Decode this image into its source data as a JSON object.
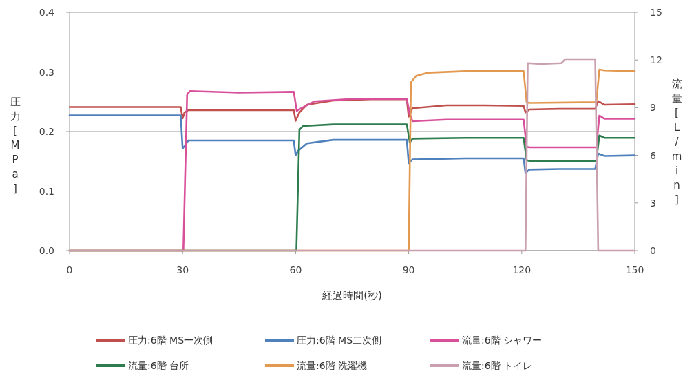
{
  "chart_data": {
    "type": "line",
    "xlabel": "経過時間(秒)",
    "ylabel": "圧力[MPa]",
    "y2label": "流量[L/min]",
    "xlim": [
      0,
      150
    ],
    "xticks": [
      0,
      30,
      60,
      90,
      120,
      150
    ],
    "ylim": [
      0,
      0.4
    ],
    "yticks": [
      {
        "value": 0,
        "label": "0.0"
      },
      {
        "value": 0.1,
        "label": "0.1"
      },
      {
        "value": 0.2,
        "label": "0.2"
      },
      {
        "value": 0.3,
        "label": "0.3"
      },
      {
        "value": 0.4,
        "label": "0.4"
      }
    ],
    "y2lim": [
      0,
      15
    ],
    "y2ticks": [
      0,
      3,
      6,
      9,
      12,
      15
    ],
    "grid": "y",
    "legend": "bottom",
    "marker": "none",
    "line_style": "solid",
    "series": [
      {
        "name": "圧力:6階 MS一次側",
        "color": "#c0504d",
        "x": [
          0,
          29.5,
          30,
          30.5,
          31.5,
          45,
          59.5,
          60,
          61,
          63,
          70,
          80,
          89.5,
          90,
          91,
          100,
          110,
          120.5,
          121,
          122,
          130,
          139.5,
          140.3,
          142,
          150
        ],
        "values": [
          0.241,
          0.241,
          0.222,
          0.232,
          0.236,
          0.236,
          0.236,
          0.218,
          0.232,
          0.245,
          0.252,
          0.254,
          0.254,
          0.225,
          0.239,
          0.244,
          0.244,
          0.243,
          0.232,
          0.237,
          0.238,
          0.238,
          0.251,
          0.245,
          0.246
        ]
      },
      {
        "name": "圧力:6階 MS二次側",
        "color": "#4f81bd",
        "x": [
          0,
          29.5,
          30,
          30.5,
          31.5,
          45,
          59.5,
          60,
          60.7,
          63,
          70,
          89.5,
          90,
          91,
          105,
          120.5,
          121,
          122,
          130,
          139.5,
          140.3,
          142,
          150
        ],
        "values": [
          0.227,
          0.227,
          0.172,
          0.175,
          0.185,
          0.185,
          0.185,
          0.16,
          0.168,
          0.18,
          0.186,
          0.186,
          0.147,
          0.153,
          0.155,
          0.155,
          0.13,
          0.136,
          0.137,
          0.137,
          0.163,
          0.159,
          0.16
        ]
      },
      {
        "name": "流量:6階 シャワー",
        "color": "#d9509a",
        "axis": "y2",
        "x": [
          0,
          30.2,
          31.2,
          32,
          45,
          59.5,
          60.3,
          61,
          65,
          75,
          89.5,
          90.3,
          91,
          100,
          120.5,
          121.3,
          122,
          139.8,
          140.6,
          142,
          150
        ],
        "values": [
          0,
          0,
          9.85,
          10.05,
          9.95,
          10.0,
          8.8,
          8.9,
          9.4,
          9.55,
          9.55,
          8.6,
          8.15,
          8.25,
          8.25,
          6.55,
          6.5,
          6.5,
          8.5,
          8.3,
          8.3
        ]
      },
      {
        "name": "流量:6階 台所",
        "color": "#2e7d4f",
        "axis": "y2",
        "x": [
          0,
          60.2,
          61,
          62,
          70,
          89.5,
          90.3,
          91,
          105,
          120.5,
          121.3,
          122,
          139.8,
          140.6,
          142,
          150
        ],
        "values": [
          0,
          0,
          7.6,
          7.85,
          7.95,
          7.95,
          6.8,
          7.05,
          7.1,
          7.1,
          5.7,
          5.65,
          5.65,
          7.25,
          7.1,
          7.1
        ]
      },
      {
        "name": "流量:6階 洗濯機",
        "color": "#e39a50",
        "axis": "y2",
        "x": [
          0,
          90,
          90.6,
          92,
          95,
          105,
          120.5,
          121.3,
          122,
          139.8,
          140.6,
          142,
          150
        ],
        "values": [
          0,
          0,
          10.6,
          11.0,
          11.2,
          11.3,
          11.3,
          9.35,
          9.3,
          9.35,
          11.4,
          11.35,
          11.3
        ]
      },
      {
        "name": "流量:6階 トイレ",
        "color": "#c9a0b0",
        "axis": "y2",
        "x": [
          0,
          121,
          121.6,
          125,
          130.5,
          131.5,
          139.5,
          140.3,
          150
        ],
        "values": [
          0,
          0,
          11.8,
          11.75,
          11.8,
          12.05,
          12.05,
          0,
          0
        ]
      }
    ]
  }
}
